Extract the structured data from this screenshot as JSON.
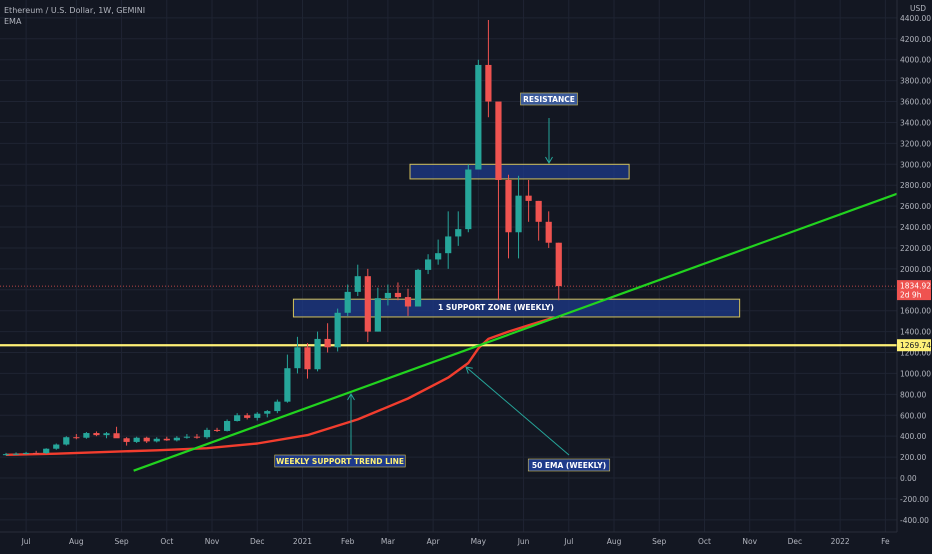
{
  "legend": {
    "title": "Ethereum / U.S. Dollar, 1W, GEMINI",
    "indicator": "EMA"
  },
  "currency": "USD",
  "colors": {
    "background": "#131722",
    "up": "#26a69a",
    "down": "#ef5350",
    "ema": "#f23d2e",
    "trend": "#22d31f",
    "support_line": "#fff176",
    "zone_fill": "#1e3a8a",
    "zone_border": "#d4c25a"
  },
  "price_tags": {
    "current": "1834.92",
    "countdown": "2d 9h",
    "support": "1269.74"
  },
  "annotations": {
    "resistance": "RESISTANCE",
    "support_zone": "1 SUPPORT ZONE (WEEKLY)",
    "trend_line": "WEEKLY SUPPORT TREND LINE",
    "ema": "50 EMA (WEEKLY)"
  },
  "chart_data": {
    "type": "candlestick",
    "yunit": "USD",
    "ylim": [
      -500,
      4450
    ],
    "y_ticks": [
      4400,
      4200,
      4000,
      3800,
      3600,
      3400,
      3200,
      3000,
      2800,
      2600,
      2400,
      2200,
      2000,
      1800,
      1600,
      1400,
      1200,
      1000,
      800,
      600,
      400,
      200,
      0,
      -200,
      -400
    ],
    "y_tick_labels": [
      "4400.00",
      "4200.00",
      "4000.00",
      "3800.00",
      "3600.00",
      "3400.00",
      "3200.00",
      "3000.00",
      "2800.00",
      "2600.00",
      "2400.00",
      "2200.00",
      "2000.00",
      "1800.00",
      "1600.00",
      "1400.00",
      "1200.00",
      "1000.00",
      "800.00",
      "600.00",
      "400.00",
      "200.00",
      "0.00",
      "-200.00",
      "-400.00"
    ],
    "x_ticks": [
      {
        "label": "Jul",
        "week": 2
      },
      {
        "label": "Aug",
        "week": 7
      },
      {
        "label": "Sep",
        "week": 11.5
      },
      {
        "label": "Oct",
        "week": 16
      },
      {
        "label": "Nov",
        "week": 20.5
      },
      {
        "label": "Dec",
        "week": 25
      },
      {
        "label": "2021",
        "week": 29.5
      },
      {
        "label": "Feb",
        "week": 34
      },
      {
        "label": "Mar",
        "week": 38
      },
      {
        "label": "Apr",
        "week": 42.5
      },
      {
        "label": "May",
        "week": 47
      },
      {
        "label": "Jun",
        "week": 51.5
      },
      {
        "label": "Jul",
        "week": 56
      },
      {
        "label": "Aug",
        "week": 60.5
      },
      {
        "label": "Sep",
        "week": 65
      },
      {
        "label": "Oct",
        "week": 69.5
      },
      {
        "label": "Nov",
        "week": 74
      },
      {
        "label": "Dec",
        "week": 78.5
      },
      {
        "label": "2022",
        "week": 83
      },
      {
        "label": "Fe",
        "week": 87.5
      }
    ],
    "candles": [
      {
        "o": 225,
        "h": 240,
        "l": 215,
        "c": 228
      },
      {
        "o": 228,
        "h": 245,
        "l": 220,
        "c": 232
      },
      {
        "o": 232,
        "h": 250,
        "l": 225,
        "c": 240
      },
      {
        "o": 240,
        "h": 260,
        "l": 232,
        "c": 238
      },
      {
        "o": 238,
        "h": 285,
        "l": 230,
        "c": 280
      },
      {
        "o": 280,
        "h": 330,
        "l": 270,
        "c": 320
      },
      {
        "o": 320,
        "h": 400,
        "l": 310,
        "c": 390
      },
      {
        "o": 390,
        "h": 420,
        "l": 370,
        "c": 385
      },
      {
        "o": 385,
        "h": 440,
        "l": 375,
        "c": 430
      },
      {
        "o": 430,
        "h": 445,
        "l": 400,
        "c": 410
      },
      {
        "o": 410,
        "h": 440,
        "l": 380,
        "c": 428
      },
      {
        "o": 428,
        "h": 490,
        "l": 410,
        "c": 380
      },
      {
        "o": 380,
        "h": 390,
        "l": 310,
        "c": 345
      },
      {
        "o": 345,
        "h": 395,
        "l": 335,
        "c": 385
      },
      {
        "o": 385,
        "h": 395,
        "l": 335,
        "c": 350
      },
      {
        "o": 350,
        "h": 390,
        "l": 340,
        "c": 375
      },
      {
        "o": 375,
        "h": 395,
        "l": 355,
        "c": 360
      },
      {
        "o": 360,
        "h": 400,
        "l": 350,
        "c": 385
      },
      {
        "o": 385,
        "h": 420,
        "l": 375,
        "c": 395
      },
      {
        "o": 395,
        "h": 420,
        "l": 375,
        "c": 390
      },
      {
        "o": 390,
        "h": 480,
        "l": 375,
        "c": 460
      },
      {
        "o": 460,
        "h": 480,
        "l": 440,
        "c": 450
      },
      {
        "o": 450,
        "h": 560,
        "l": 445,
        "c": 545
      },
      {
        "o": 545,
        "h": 620,
        "l": 540,
        "c": 600
      },
      {
        "o": 600,
        "h": 620,
        "l": 560,
        "c": 575
      },
      {
        "o": 575,
        "h": 630,
        "l": 550,
        "c": 615
      },
      {
        "o": 615,
        "h": 650,
        "l": 580,
        "c": 640
      },
      {
        "o": 640,
        "h": 750,
        "l": 620,
        "c": 730
      },
      {
        "o": 730,
        "h": 1180,
        "l": 720,
        "c": 1050
      },
      {
        "o": 1050,
        "h": 1350,
        "l": 1000,
        "c": 1250
      },
      {
        "o": 1250,
        "h": 1290,
        "l": 950,
        "c": 1040
      },
      {
        "o": 1040,
        "h": 1400,
        "l": 1020,
        "c": 1330
      },
      {
        "o": 1330,
        "h": 1480,
        "l": 1200,
        "c": 1250
      },
      {
        "o": 1250,
        "h": 1620,
        "l": 1210,
        "c": 1580
      },
      {
        "o": 1580,
        "h": 1850,
        "l": 1550,
        "c": 1780
      },
      {
        "o": 1780,
        "h": 2040,
        "l": 1740,
        "c": 1930
      },
      {
        "o": 1930,
        "h": 2000,
        "l": 1300,
        "c": 1400
      },
      {
        "o": 1400,
        "h": 1820,
        "l": 1400,
        "c": 1720
      },
      {
        "o": 1720,
        "h": 1850,
        "l": 1650,
        "c": 1770
      },
      {
        "o": 1770,
        "h": 1870,
        "l": 1700,
        "c": 1730
      },
      {
        "o": 1730,
        "h": 1810,
        "l": 1550,
        "c": 1640
      },
      {
        "o": 1640,
        "h": 2000,
        "l": 1640,
        "c": 1990
      },
      {
        "o": 1990,
        "h": 2140,
        "l": 1950,
        "c": 2090
      },
      {
        "o": 2090,
        "h": 2280,
        "l": 2040,
        "c": 2150
      },
      {
        "o": 2150,
        "h": 2550,
        "l": 2000,
        "c": 2310
      },
      {
        "o": 2310,
        "h": 2550,
        "l": 2220,
        "c": 2380
      },
      {
        "o": 2380,
        "h": 3000,
        "l": 2350,
        "c": 2950
      },
      {
        "o": 2950,
        "h": 4000,
        "l": 2950,
        "c": 3950
      },
      {
        "o": 3950,
        "h": 4380,
        "l": 3450,
        "c": 3600
      },
      {
        "o": 3600,
        "h": 3560,
        "l": 1700,
        "c": 2850
      },
      {
        "o": 2850,
        "h": 2900,
        "l": 2100,
        "c": 2350
      },
      {
        "o": 2350,
        "h": 2890,
        "l": 2100,
        "c": 2700
      },
      {
        "o": 2700,
        "h": 2850,
        "l": 2450,
        "c": 2650
      },
      {
        "o": 2650,
        "h": 2650,
        "l": 2270,
        "c": 2450
      },
      {
        "o": 2450,
        "h": 2550,
        "l": 2200,
        "c": 2250
      },
      {
        "o": 2250,
        "h": 2250,
        "l": 1700,
        "c": 1835
      }
    ],
    "ema50": [
      [
        0,
        222
      ],
      [
        5,
        232
      ],
      [
        10,
        250
      ],
      [
        15,
        265
      ],
      [
        20,
        285
      ],
      [
        25,
        330
      ],
      [
        30,
        410
      ],
      [
        35,
        560
      ],
      [
        40,
        760
      ],
      [
        44,
        960
      ],
      [
        46,
        1100
      ],
      [
        47,
        1240
      ],
      [
        48,
        1330
      ],
      [
        50,
        1400
      ],
      [
        52,
        1460
      ],
      [
        54,
        1520
      ],
      [
        55,
        1540
      ]
    ],
    "support_line_y": 1269.74,
    "trend_line": {
      "x1": 12.7,
      "y1": 70,
      "x2": 89,
      "y2": 2730
    },
    "zones": [
      {
        "name": "resistance",
        "x1": 40.2,
        "x2": 62,
        "y1": 2860,
        "y2": 3000
      },
      {
        "name": "support",
        "x1": 28.6,
        "x2": 73,
        "y1": 1540,
        "y2": 1710
      }
    ]
  }
}
